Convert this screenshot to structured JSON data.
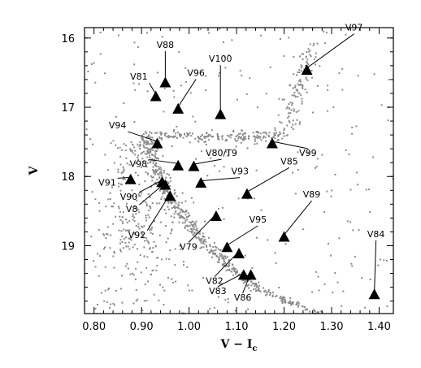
{
  "chart_data": {
    "type": "scatter",
    "title": "",
    "xlabel": "V − I",
    "xlabel_subscript": "c",
    "ylabel": "V",
    "xlim": [
      0.78,
      1.43
    ],
    "ylim": [
      15.85,
      19.98
    ],
    "y_inverted": true,
    "grid": false,
    "legend": "none",
    "x_ticks": [
      0.8,
      0.9,
      1.0,
      1.1,
      1.2,
      1.3,
      1.4
    ],
    "x_tick_labels": [
      "0.80",
      "0.90",
      "1.00",
      "1.10",
      "1.20",
      "1.30",
      "1.40"
    ],
    "y_ticks": [
      16,
      17,
      18,
      19
    ],
    "y_tick_labels": [
      "16",
      "17",
      "18",
      "19"
    ],
    "background_stars_color": "#8a8a8a",
    "variable_marker": "filled-triangle",
    "variable_color": "#000000",
    "variables": [
      {
        "name": "V81",
        "x": 0.93,
        "y": 16.86
      },
      {
        "name": "V88",
        "x": 0.95,
        "y": 16.66
      },
      {
        "name": "V96",
        "x": 0.977,
        "y": 17.04
      },
      {
        "name": "V100",
        "x": 1.066,
        "y": 17.12
      },
      {
        "name": "V97",
        "x": 1.248,
        "y": 16.48
      },
      {
        "name": "V94",
        "x": 0.933,
        "y": 17.54
      },
      {
        "name": "V99",
        "x": 1.175,
        "y": 17.54
      },
      {
        "name": "V98",
        "x": 0.977,
        "y": 17.86
      },
      {
        "name": "V80/T9",
        "x": 1.01,
        "y": 17.87
      },
      {
        "name": "V91",
        "x": 0.877,
        "y": 18.06
      },
      {
        "name": "V93",
        "x": 1.025,
        "y": 18.11
      },
      {
        "name": "V85",
        "x": 1.122,
        "y": 18.27
      },
      {
        "name": "V90",
        "x": 0.943,
        "y": 18.1
      },
      {
        "name": "V8",
        "x": 0.95,
        "y": 18.14
      },
      {
        "name": "V92",
        "x": 0.96,
        "y": 18.3
      },
      {
        "name": "V79",
        "x": 1.057,
        "y": 18.59
      },
      {
        "name": "V89",
        "x": 1.2,
        "y": 18.89
      },
      {
        "name": "V95",
        "x": 1.08,
        "y": 19.04
      },
      {
        "name": "V82",
        "x": 1.105,
        "y": 19.13
      },
      {
        "name": "V83",
        "x": 1.115,
        "y": 19.44
      },
      {
        "name": "V86",
        "x": 1.13,
        "y": 19.44
      },
      {
        "name": "V84",
        "x": 1.39,
        "y": 19.72
      }
    ]
  }
}
